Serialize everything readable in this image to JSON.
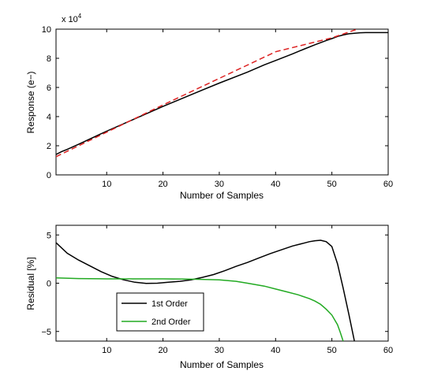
{
  "chart_data": [
    {
      "type": "line",
      "xlabel": "Number of Samples",
      "ylabel": "Response (e−)",
      "multiplier": "x 10",
      "multiplier_exp": "4",
      "xlim": [
        1,
        60
      ],
      "ylim": [
        0,
        10
      ],
      "xticks": [
        "10",
        "20",
        "30",
        "40",
        "50",
        "60"
      ],
      "yticks": [
        "0",
        "2",
        "4",
        "6",
        "8",
        "10"
      ],
      "grid": false,
      "series": [
        {
          "color": "#000000",
          "style": "solid",
          "x": [
            1,
            2,
            3,
            5,
            10,
            15,
            20,
            25,
            30,
            35,
            38,
            40,
            43,
            45,
            47,
            49,
            50,
            51,
            52,
            53,
            54,
            55,
            56,
            58,
            60
          ],
          "y": [
            1.4,
            1.6,
            1.75,
            2.1,
            3.0,
            3.85,
            4.7,
            5.5,
            6.3,
            7.05,
            7.55,
            7.85,
            8.3,
            8.62,
            8.93,
            9.22,
            9.35,
            9.5,
            9.6,
            9.68,
            9.72,
            9.75,
            9.76,
            9.76,
            9.76
          ]
        },
        {
          "color": "#dd2222",
          "style": "dashed",
          "x": [
            1,
            10,
            20,
            30,
            40,
            50,
            54.5
          ],
          "y": [
            1.25,
            2.93,
            4.8,
            6.62,
            8.45,
            9.4,
            10.0
          ]
        }
      ]
    },
    {
      "type": "line",
      "xlabel": "Number of Samples",
      "ylabel": "Residual [%]",
      "xlim": [
        1,
        60
      ],
      "ylim": [
        -6,
        6
      ],
      "xticks": [
        "10",
        "20",
        "30",
        "40",
        "50",
        "60"
      ],
      "yticks": [
        "5",
        "0",
        "−5"
      ],
      "grid": false,
      "legend_position": "bottom-left",
      "series": [
        {
          "name": "1st Order",
          "color": "#000000",
          "x": [
            1,
            3,
            5,
            7,
            9,
            11,
            13,
            15,
            17,
            19,
            21,
            23,
            25,
            27,
            29,
            31,
            33,
            35,
            37,
            39,
            41,
            43,
            45,
            46,
            47,
            48,
            49,
            50,
            51,
            52,
            53,
            54
          ],
          "y": [
            4.2,
            3.1,
            2.4,
            1.8,
            1.2,
            0.7,
            0.35,
            0.1,
            -0.02,
            0.0,
            0.1,
            0.2,
            0.35,
            0.6,
            0.9,
            1.3,
            1.75,
            2.15,
            2.6,
            3.05,
            3.45,
            3.85,
            4.15,
            4.3,
            4.4,
            4.45,
            4.3,
            3.8,
            2.0,
            -0.5,
            -3.2,
            -6.0
          ]
        },
        {
          "name": "2nd Order",
          "color": "#22aa22",
          "x": [
            1,
            5,
            10,
            15,
            20,
            25,
            30,
            33,
            35,
            38,
            40,
            42,
            44,
            46,
            47,
            48,
            49,
            50,
            51,
            51.5,
            52
          ],
          "y": [
            0.55,
            0.48,
            0.45,
            0.45,
            0.45,
            0.42,
            0.35,
            0.2,
            0.0,
            -0.3,
            -0.6,
            -0.9,
            -1.2,
            -1.6,
            -1.85,
            -2.2,
            -2.7,
            -3.3,
            -4.3,
            -5.1,
            -6.0
          ]
        }
      ]
    }
  ]
}
